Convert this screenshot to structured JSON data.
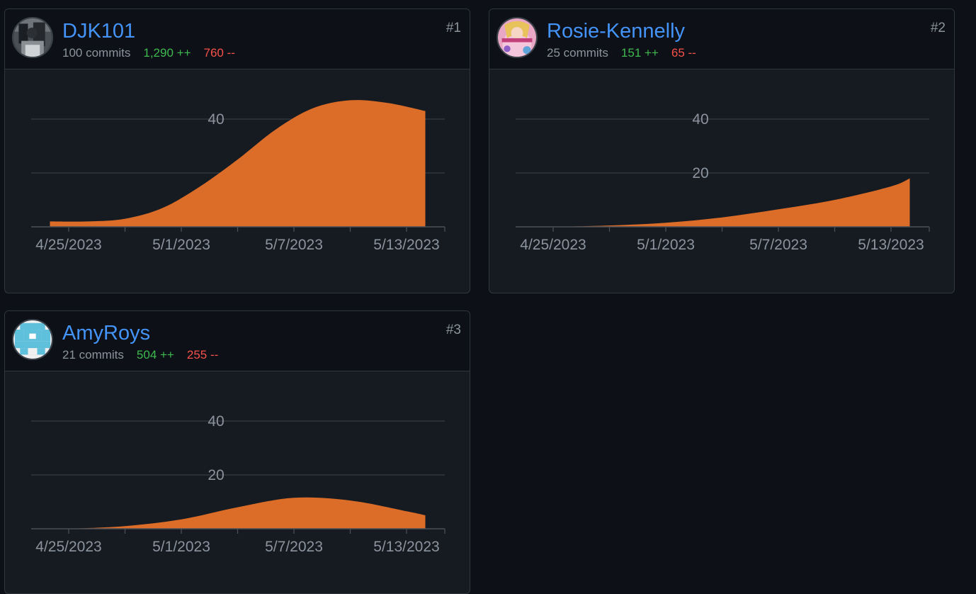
{
  "contributors": [
    {
      "username": "DJK101",
      "commits": "100 commits",
      "additions": "1,290 ++",
      "deletions": "760 --",
      "rank": "#1",
      "avatar_icon": "photo-avatar-icon",
      "chart_data": {
        "type": "area",
        "x": [
          "2023-04-24",
          "2023-04-26",
          "2023-04-28",
          "2023-04-30",
          "2023-05-02",
          "2023-05-04",
          "2023-05-06",
          "2023-05-08",
          "2023-05-10",
          "2023-05-12",
          "2023-05-14"
        ],
        "values": [
          2,
          2,
          3,
          7,
          15,
          25,
          36,
          44,
          47,
          46,
          43
        ],
        "x_ticks": [
          "4/25/2023",
          "5/1/2023",
          "5/7/2023",
          "5/13/2023"
        ],
        "y_ticks": [
          "40"
        ],
        "ylim": [
          0,
          50
        ],
        "grid": true,
        "color": "#db6d28"
      }
    },
    {
      "username": "Rosie-Kennelly",
      "commits": "25 commits",
      "additions": "151 ++",
      "deletions": "65 --",
      "rank": "#2",
      "avatar_icon": "cartoon-avatar-icon",
      "chart_data": {
        "type": "area",
        "x": [
          "2023-04-25",
          "2023-04-28",
          "2023-05-01",
          "2023-05-04",
          "2023-05-07",
          "2023-05-10",
          "2023-05-13",
          "2023-05-14"
        ],
        "values": [
          0,
          0.5,
          1.5,
          3.5,
          6.5,
          10,
          15,
          18
        ],
        "x_ticks": [
          "4/25/2023",
          "5/1/2023",
          "5/7/2023",
          "5/13/2023"
        ],
        "y_ticks": [
          "40",
          "20"
        ],
        "ylim": [
          0,
          50
        ],
        "grid": true,
        "color": "#db6d28"
      }
    },
    {
      "username": "AmyRoys",
      "commits": "21 commits",
      "additions": "504 ++",
      "deletions": "255 --",
      "rank": "#3",
      "avatar_icon": "pixel-identicon-icon",
      "chart_data": {
        "type": "area",
        "x": [
          "2023-04-25",
          "2023-04-28",
          "2023-05-01",
          "2023-05-04",
          "2023-05-07",
          "2023-05-10",
          "2023-05-13",
          "2023-05-14"
        ],
        "values": [
          0,
          1,
          3.5,
          8,
          11.5,
          10.5,
          6.5,
          5
        ],
        "x_ticks": [
          "4/25/2023",
          "5/1/2023",
          "5/7/2023",
          "5/13/2023"
        ],
        "y_ticks": [
          "40",
          "20"
        ],
        "ylim": [
          0,
          50
        ],
        "grid": true,
        "color": "#db6d28"
      }
    }
  ]
}
